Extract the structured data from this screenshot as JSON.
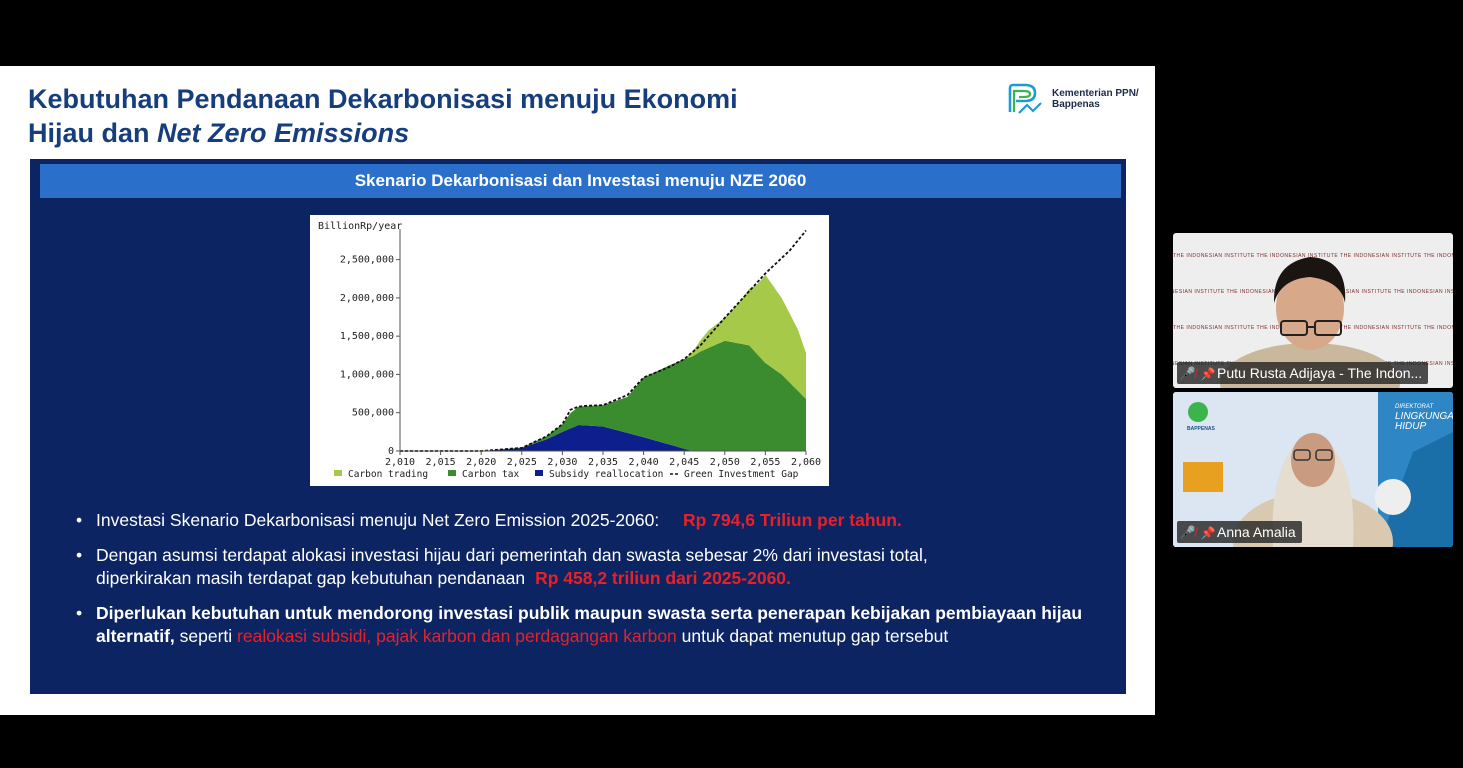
{
  "slide": {
    "title_line1": "Kebutuhan Pendanaan Dekarbonisasi menuju Ekonomi",
    "title_line2_plain": "Hijau dan ",
    "title_line2_italic": "Net Zero Emissions",
    "logo_line1": "Kementerian PPN/",
    "logo_line2": "Bappenas",
    "panel_header": "Skenario Dekarbonisasi dan Investasi menuju NZE 2060",
    "bullets": [
      {
        "text": "Investasi Skenario Dekarbonisasi menuju Net Zero Emission 2025-2060:",
        "highlight": "Rp 794,6 Triliun per tahun."
      },
      {
        "line1": "Dengan asumsi terdapat alokasi investasi hijau dari pemerintah dan swasta sebesar 2% dari investasi total,",
        "line2": "diperkirakan masih terdapat gap kebutuhan pendanaan",
        "highlight": "Rp 458,2 triliun dari 2025-2060."
      },
      {
        "bold": "Diperlukan kebutuhan untuk mendorong investasi publik maupun swasta serta penerapan kebijakan pembiayaan hijau alternatif,",
        "plain": " seperti ",
        "red": "realokasi subsidi, pajak karbon dan perdagangan karbon",
        "tail": " untuk dapat menutup gap tersebut"
      }
    ]
  },
  "chart_data": {
    "type": "area",
    "ylabel": "BillionRp/year",
    "x_ticks": [
      "2,010",
      "2,015",
      "2,020",
      "2,025",
      "2,030",
      "2,035",
      "2,040",
      "2,045",
      "2,050",
      "2,055",
      "2,060"
    ],
    "y_ticks": [
      "0",
      "500,000",
      "1,000,000",
      "1,500,000",
      "2,000,000",
      "2,500,000"
    ],
    "xlim": [
      2010,
      2060
    ],
    "ylim": [
      0,
      2900000
    ],
    "stacked": true,
    "series": [
      {
        "name": "Subsidy reallocation",
        "color": "#0d1f8c",
        "x": [
          2010,
          2020,
          2025,
          2028,
          2030,
          2032,
          2035,
          2040,
          2045,
          2046
        ],
        "y": [
          0,
          0,
          40000,
          150000,
          250000,
          340000,
          320000,
          180000,
          30000,
          0
        ]
      },
      {
        "name": "Carbon tax",
        "color": "#3a8c2e",
        "x": [
          2010,
          2020,
          2025,
          2028,
          2030,
          2031,
          2032,
          2035,
          2038,
          2040,
          2043,
          2045,
          2047,
          2050,
          2053,
          2055,
          2057,
          2060
        ],
        "y": [
          0,
          0,
          5000,
          40000,
          100000,
          200000,
          240000,
          280000,
          470000,
          780000,
          1020000,
          1170000,
          1300000,
          1440000,
          1380000,
          1150000,
          1000000,
          680000
        ]
      },
      {
        "name": "Carbon trading",
        "color": "#a6c94a",
        "x": [
          2010,
          2045,
          2046,
          2048,
          2050,
          2052,
          2054,
          2055,
          2057,
          2059,
          2060
        ],
        "y": [
          0,
          0,
          60000,
          230000,
          300000,
          570000,
          910000,
          1150000,
          1000000,
          800000,
          600000
        ]
      }
    ],
    "gap": {
      "name": "Green Investment Gap",
      "x": [
        2010,
        2020,
        2025,
        2028,
        2030,
        2031,
        2032,
        2033,
        2035,
        2038,
        2040,
        2043,
        2045,
        2047,
        2050,
        2052,
        2055,
        2058,
        2060
      ],
      "y": [
        0,
        0,
        40000,
        190000,
        350000,
        540000,
        580000,
        590000,
        600000,
        730000,
        960000,
        1090000,
        1200000,
        1380000,
        1740000,
        1970000,
        2320000,
        2620000,
        2880000
      ]
    },
    "legend": [
      "Carbon trading",
      "Carbon tax",
      "Subsidy reallocation",
      "Green Investment Gap"
    ],
    "legend_position": "bottom"
  },
  "participants": [
    {
      "name": "Putu Rusta Adijaya - The Indon...",
      "muted": true,
      "backdrop_text": "THE INDONESIAN INSTITUTE"
    },
    {
      "name": "Anna Amalia",
      "muted": true,
      "backdrop_title1": "DIREKTORAT",
      "backdrop_title2": "LINGKUNGAN",
      "backdrop_title3": "HIDUP",
      "backdrop_logo": "BAPPENAS"
    }
  ],
  "icons": {
    "mic_muted": "mic-off-icon",
    "pin": "pin-icon"
  }
}
